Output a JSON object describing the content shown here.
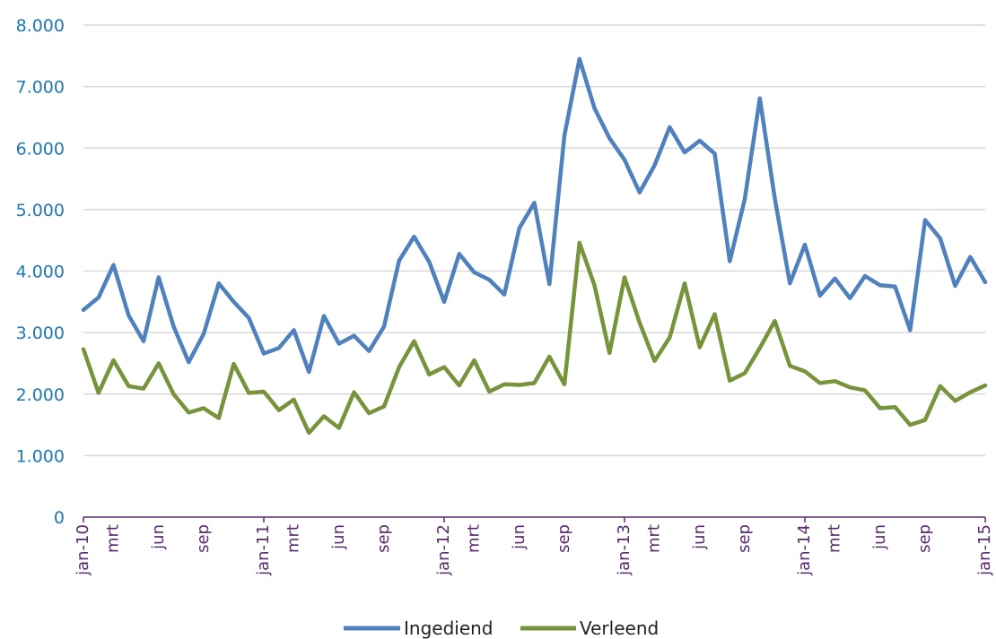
{
  "chart_data": {
    "type": "line",
    "title": "",
    "xlabel": "",
    "ylabel": "",
    "ylim": [
      0,
      8000
    ],
    "yticks": [
      0,
      1000,
      2000,
      3000,
      4000,
      5000,
      6000,
      7000,
      8000
    ],
    "ytick_labels": [
      "0",
      "1.000",
      "2.000",
      "3.000",
      "4.000",
      "5.000",
      "6.000",
      "7.000",
      "8.000"
    ],
    "grid": "horizontal",
    "legend": "bottom-center",
    "x": [
      "jan-10",
      "feb-10",
      "mrt-10",
      "apr-10",
      "mei-10",
      "jun-10",
      "jul-10",
      "aug-10",
      "sep-10",
      "okt-10",
      "nov-10",
      "dec-10",
      "jan-11",
      "feb-11",
      "mrt-11",
      "apr-11",
      "mei-11",
      "jun-11",
      "jul-11",
      "aug-11",
      "sep-11",
      "okt-11",
      "nov-11",
      "dec-11",
      "jan-12",
      "feb-12",
      "mrt-12",
      "apr-12",
      "mei-12",
      "jun-12",
      "jul-12",
      "aug-12",
      "sep-12",
      "okt-12",
      "nov-12",
      "dec-12",
      "jan-13",
      "feb-13",
      "mrt-13",
      "apr-13",
      "mei-13",
      "jun-13",
      "jul-13",
      "aug-13",
      "sep-13",
      "okt-13",
      "nov-13",
      "dec-13",
      "jan-14",
      "feb-14",
      "mrt-14",
      "apr-14",
      "mei-14",
      "jun-14",
      "jul-14",
      "aug-14",
      "sep-14",
      "okt-14",
      "nov-14",
      "dec-14",
      "jan-15"
    ],
    "x_tick_labels": [
      {
        "index": 0,
        "label": "jan-10"
      },
      {
        "index": 2,
        "label": "mrt"
      },
      {
        "index": 5,
        "label": "jun"
      },
      {
        "index": 8,
        "label": "sep"
      },
      {
        "index": 12,
        "label": "jan-11"
      },
      {
        "index": 14,
        "label": "mrt"
      },
      {
        "index": 17,
        "label": "jun"
      },
      {
        "index": 20,
        "label": "sep"
      },
      {
        "index": 24,
        "label": "jan-12"
      },
      {
        "index": 26,
        "label": "mrt"
      },
      {
        "index": 29,
        "label": "jun"
      },
      {
        "index": 32,
        "label": "sep"
      },
      {
        "index": 36,
        "label": "jan-13"
      },
      {
        "index": 38,
        "label": "mrt"
      },
      {
        "index": 41,
        "label": "jun"
      },
      {
        "index": 44,
        "label": "sep"
      },
      {
        "index": 48,
        "label": "jan-14"
      },
      {
        "index": 50,
        "label": "mrt"
      },
      {
        "index": 53,
        "label": "jun"
      },
      {
        "index": 56,
        "label": "sep"
      },
      {
        "index": 60,
        "label": "jan-15"
      }
    ],
    "x_major_ticks": [
      0,
      12,
      24,
      36,
      48,
      60
    ],
    "series": [
      {
        "name": "Ingediend",
        "color": "#4f81bd",
        "values": [
          3370,
          3570,
          4100,
          3280,
          2860,
          3900,
          3100,
          2520,
          2980,
          3800,
          3500,
          3240,
          2660,
          2750,
          3040,
          2360,
          3270,
          2820,
          2950,
          2700,
          3100,
          4170,
          4560,
          4150,
          3500,
          4280,
          3980,
          3860,
          3620,
          4700,
          5110,
          3790,
          6200,
          7450,
          6650,
          6160,
          5810,
          5280,
          5720,
          6340,
          5930,
          6120,
          5910,
          4160,
          5170,
          6810,
          5180,
          3800,
          4430,
          3600,
          3880,
          3560,
          3920,
          3770,
          3750,
          3040,
          4830,
          4530,
          3760,
          4230,
          3820
        ]
      },
      {
        "name": "Verleend",
        "color": "#77933c",
        "values": [
          2730,
          2020,
          2550,
          2130,
          2090,
          2500,
          2000,
          1700,
          1770,
          1610,
          2490,
          2020,
          2040,
          1740,
          1910,
          1370,
          1640,
          1450,
          2030,
          1690,
          1800,
          2440,
          2860,
          2320,
          2440,
          2140,
          2550,
          2040,
          2160,
          2150,
          2180,
          2610,
          2160,
          4460,
          3770,
          2670,
          3900,
          3160,
          2540,
          2920,
          3800,
          2760,
          3300,
          2220,
          2340,
          2750,
          3190,
          2460,
          2370,
          2180,
          2210,
          2110,
          2060,
          1770,
          1790,
          1500,
          1580,
          2130,
          1890,
          2030,
          2140
        ]
      }
    ]
  }
}
